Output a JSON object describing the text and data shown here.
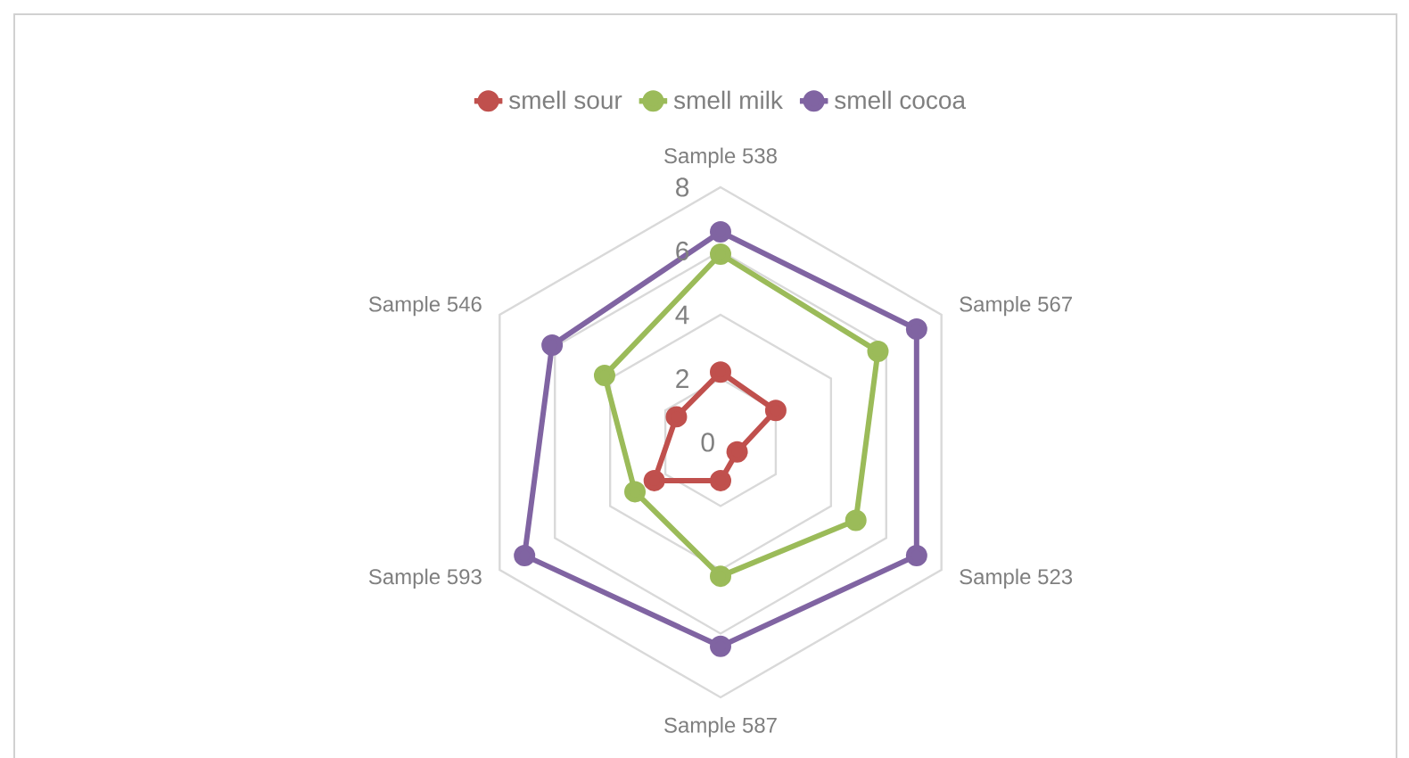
{
  "chart_data": {
    "type": "radar",
    "categories": [
      "Sample 538",
      "Sample 567",
      "Sample 523",
      "Sample 587",
      "Sample 593",
      "Sample 546"
    ],
    "series": [
      {
        "name": "smell sour",
        "color": "#c0504d",
        "values": [
          2.2,
          2.0,
          0.6,
          1.2,
          2.4,
          1.6
        ]
      },
      {
        "name": "smell milk",
        "color": "#9bbb59",
        "values": [
          5.9,
          5.7,
          4.9,
          4.2,
          3.1,
          4.2
        ]
      },
      {
        "name": "smell cocoa",
        "color": "#8064a2",
        "values": [
          6.6,
          7.1,
          7.1,
          6.4,
          7.1,
          6.1
        ]
      }
    ],
    "ylim": [
      0,
      8
    ],
    "yticks": [
      0,
      2,
      4,
      6,
      8
    ],
    "grid": true,
    "legend": "top",
    "marker": "circle",
    "line_style": "solid"
  }
}
